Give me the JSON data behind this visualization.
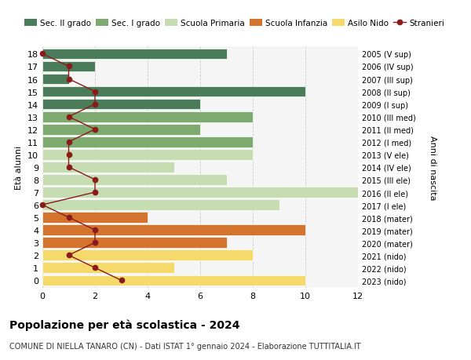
{
  "ages": [
    18,
    17,
    16,
    15,
    14,
    13,
    12,
    11,
    10,
    9,
    8,
    7,
    6,
    5,
    4,
    3,
    2,
    1,
    0
  ],
  "right_labels": [
    "2005 (V sup)",
    "2006 (IV sup)",
    "2007 (III sup)",
    "2008 (II sup)",
    "2009 (I sup)",
    "2010 (III med)",
    "2011 (II med)",
    "2012 (I med)",
    "2013 (V ele)",
    "2014 (IV ele)",
    "2015 (III ele)",
    "2016 (II ele)",
    "2017 (I ele)",
    "2018 (mater)",
    "2019 (mater)",
    "2020 (mater)",
    "2021 (nido)",
    "2022 (nido)",
    "2023 (nido)"
  ],
  "bar_values": [
    7,
    2,
    1,
    10,
    6,
    8,
    6,
    8,
    8,
    5,
    7,
    13,
    9,
    4,
    10,
    7,
    8,
    5,
    10
  ],
  "bar_colors": [
    "#4a7c59",
    "#4a7c59",
    "#4a7c59",
    "#4a7c59",
    "#4a7c59",
    "#7daa6e",
    "#7daa6e",
    "#7daa6e",
    "#c5ddb0",
    "#c5ddb0",
    "#c5ddb0",
    "#c5ddb0",
    "#c5ddb0",
    "#d4732e",
    "#d4732e",
    "#d4732e",
    "#f5d96b",
    "#f5d96b",
    "#f5d96b"
  ],
  "stranieri_values": [
    0,
    1,
    1,
    2,
    2,
    1,
    2,
    1,
    1,
    1,
    2,
    2,
    0,
    1,
    2,
    2,
    1,
    2,
    3
  ],
  "stranieri_color": "#8b1a1a",
  "legend_labels": [
    "Sec. II grado",
    "Sec. I grado",
    "Scuola Primaria",
    "Scuola Infanzia",
    "Asilo Nido",
    "Stranieri"
  ],
  "legend_colors": [
    "#4a7c59",
    "#7daa6e",
    "#c5ddb0",
    "#d4732e",
    "#f5d96b",
    "#8b1a1a"
  ],
  "title": "Popolazione per età scolastica - 2024",
  "subtitle": "COMUNE DI NIELLA TANARO (CN) - Dati ISTAT 1° gennaio 2024 - Elaborazione TUTTITALIA.IT",
  "ylabel": "Età alunni",
  "right_ylabel": "Anni di nascita",
  "xlim": [
    0,
    12
  ],
  "xticks": [
    0,
    2,
    4,
    6,
    8,
    10,
    12
  ],
  "bg_color": "#ffffff",
  "plot_bg_color": "#f5f5f5"
}
